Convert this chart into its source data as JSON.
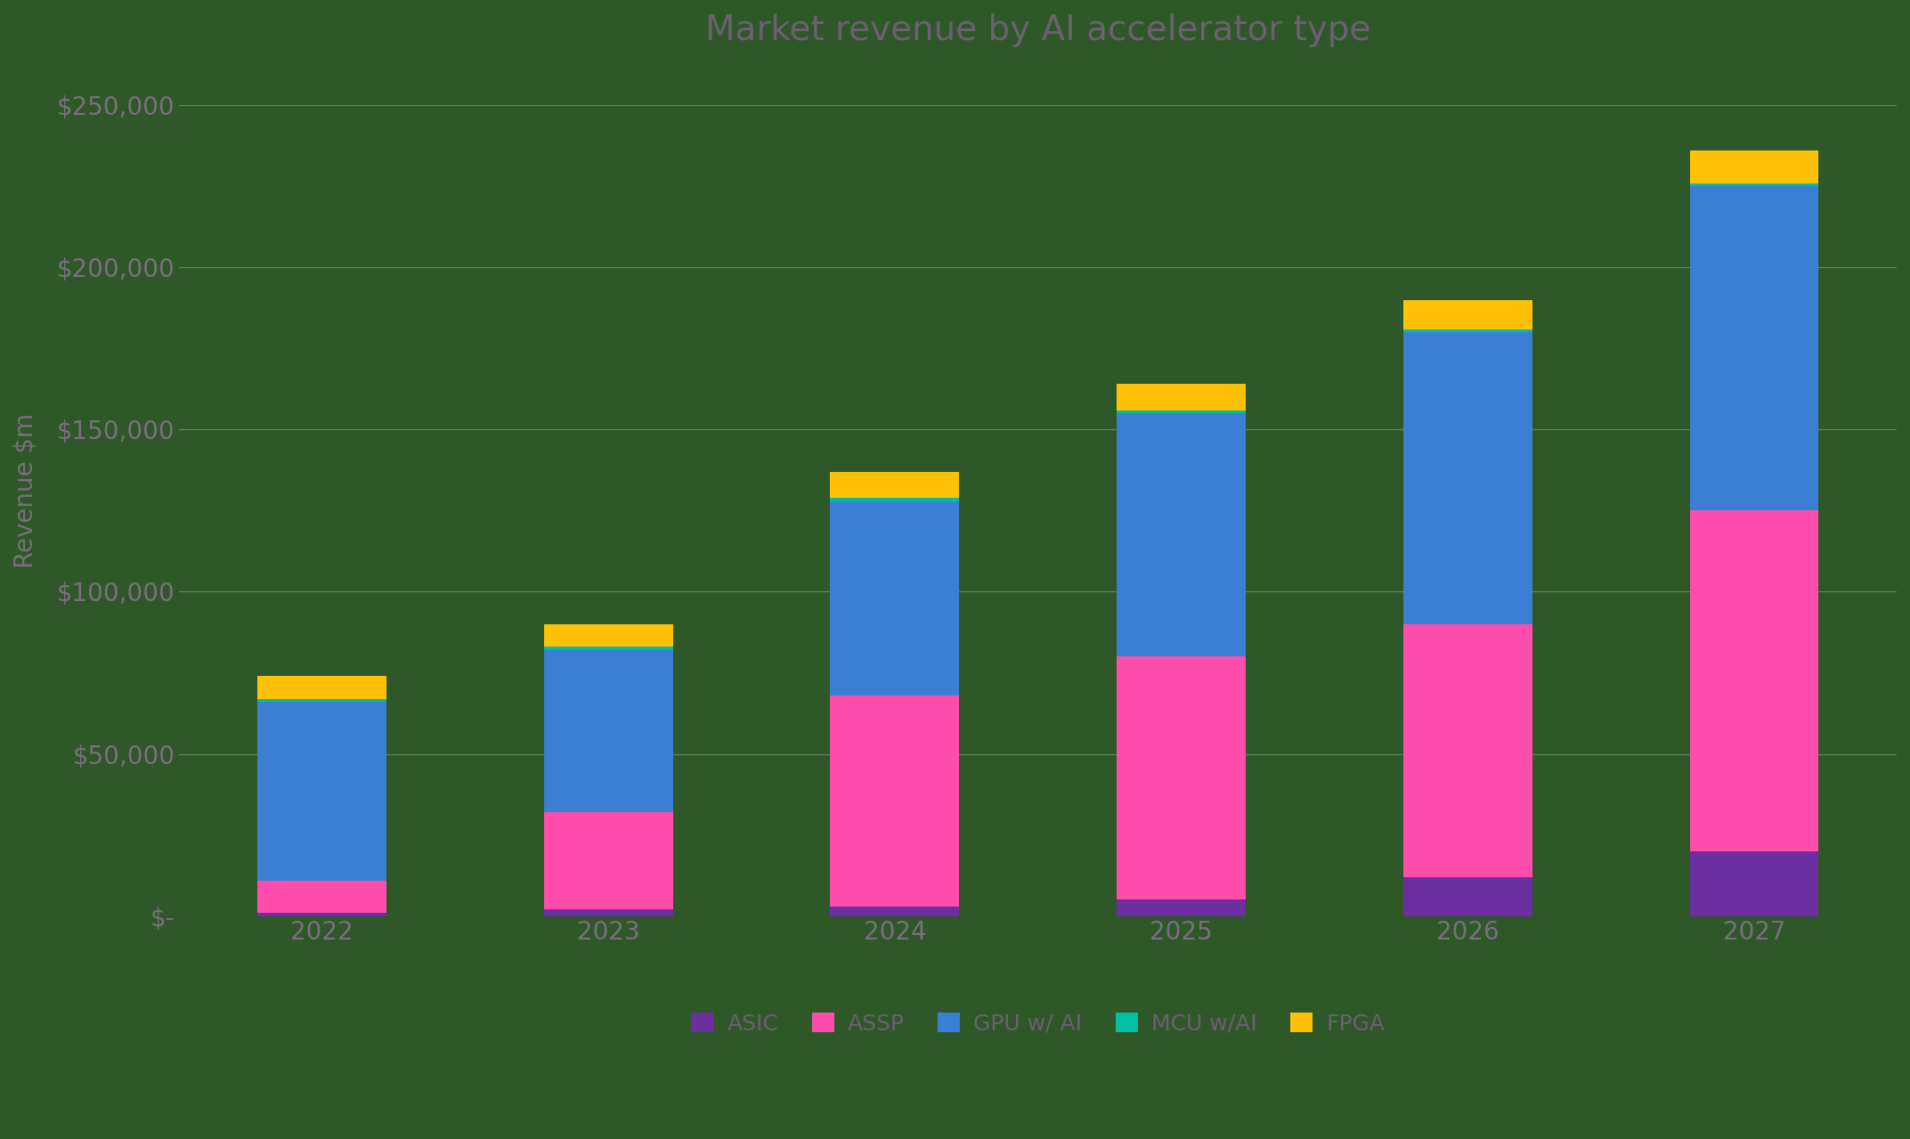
{
  "title": "Market revenue by AI accelerator type",
  "ylabel": "Revenue $m",
  "years": [
    "2022",
    "2023",
    "2024",
    "2025",
    "2026",
    "2027"
  ],
  "series": [
    {
      "label": "ASIC",
      "color": "#6B2FA0",
      "values": [
        1000,
        2000,
        3000,
        5000,
        12000,
        20000
      ]
    },
    {
      "label": "ASSP",
      "color": "#FF4DAD",
      "values": [
        10000,
        30000,
        65000,
        75000,
        78000,
        105000
      ]
    },
    {
      "label": "GPU w/ AI",
      "color": "#3B7FD4",
      "values": [
        55000,
        50000,
        60000,
        75000,
        90000,
        100000
      ]
    },
    {
      "label": "MCU w/AI",
      "color": "#00BFA5",
      "values": [
        1000,
        1000,
        1000,
        1000,
        1000,
        1000
      ]
    },
    {
      "label": "FPGA",
      "color": "#FFC107",
      "values": [
        7000,
        7000,
        8000,
        8000,
        9000,
        10000
      ]
    }
  ],
  "ylim": [
    0,
    262500
  ],
  "yticks": [
    0,
    50000,
    100000,
    150000,
    200000,
    250000
  ],
  "background_color": "#2E5827",
  "grid_color": "#aaaaaa",
  "text_color": "#7a6e7e",
  "title_color": "#6a6070",
  "legend_color": "#6a6070",
  "bar_width": 0.45,
  "title_fontsize": 28,
  "tick_fontsize": 20,
  "ylabel_fontsize": 20,
  "legend_fontsize": 18
}
